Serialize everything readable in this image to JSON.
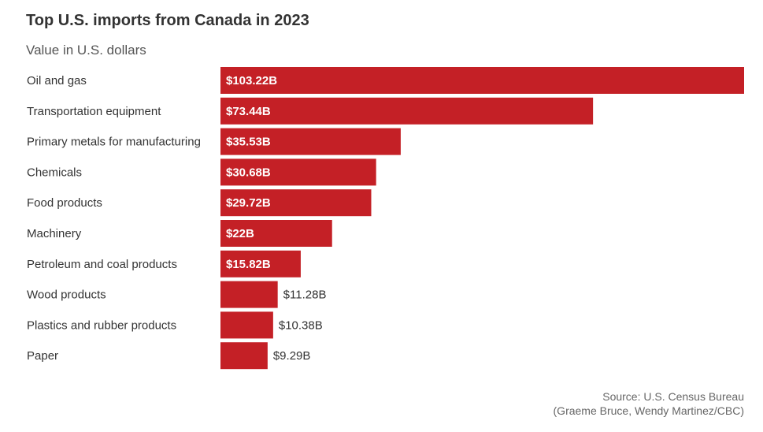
{
  "title": "Top U.S. imports from Canada in 2023",
  "subtitle": "Value in U.S. dollars",
  "source_line1": "Source: U.S. Census Bureau",
  "source_line2": "(Graeme Bruce, Wendy Martinez/CBC)",
  "colors": {
    "bar": "#c42026",
    "text": "#333333",
    "muted": "#666666"
  },
  "chart_data": {
    "type": "bar",
    "orientation": "horizontal",
    "title": "Top U.S. imports from Canada in 2023",
    "subtitle": "Value in U.S. dollars",
    "categories": [
      "Oil and gas",
      "Transportation equipment",
      "Primary metals for manufacturing",
      "Chemicals",
      "Food products",
      "Machinery",
      "Petroleum and coal products",
      "Wood products",
      "Plastics and rubber products",
      "Paper"
    ],
    "values": [
      103.22,
      73.44,
      35.53,
      30.68,
      29.72,
      22,
      15.82,
      11.28,
      10.38,
      9.29
    ],
    "value_labels": [
      "$103.22B",
      "$73.44B",
      "$35.53B",
      "$30.68B",
      "$29.72B",
      "$22B",
      "$15.82B",
      "$11.28B",
      "$10.38B",
      "$9.29B"
    ],
    "xlim": [
      0,
      103.22
    ],
    "grid": false,
    "legend": "none"
  }
}
